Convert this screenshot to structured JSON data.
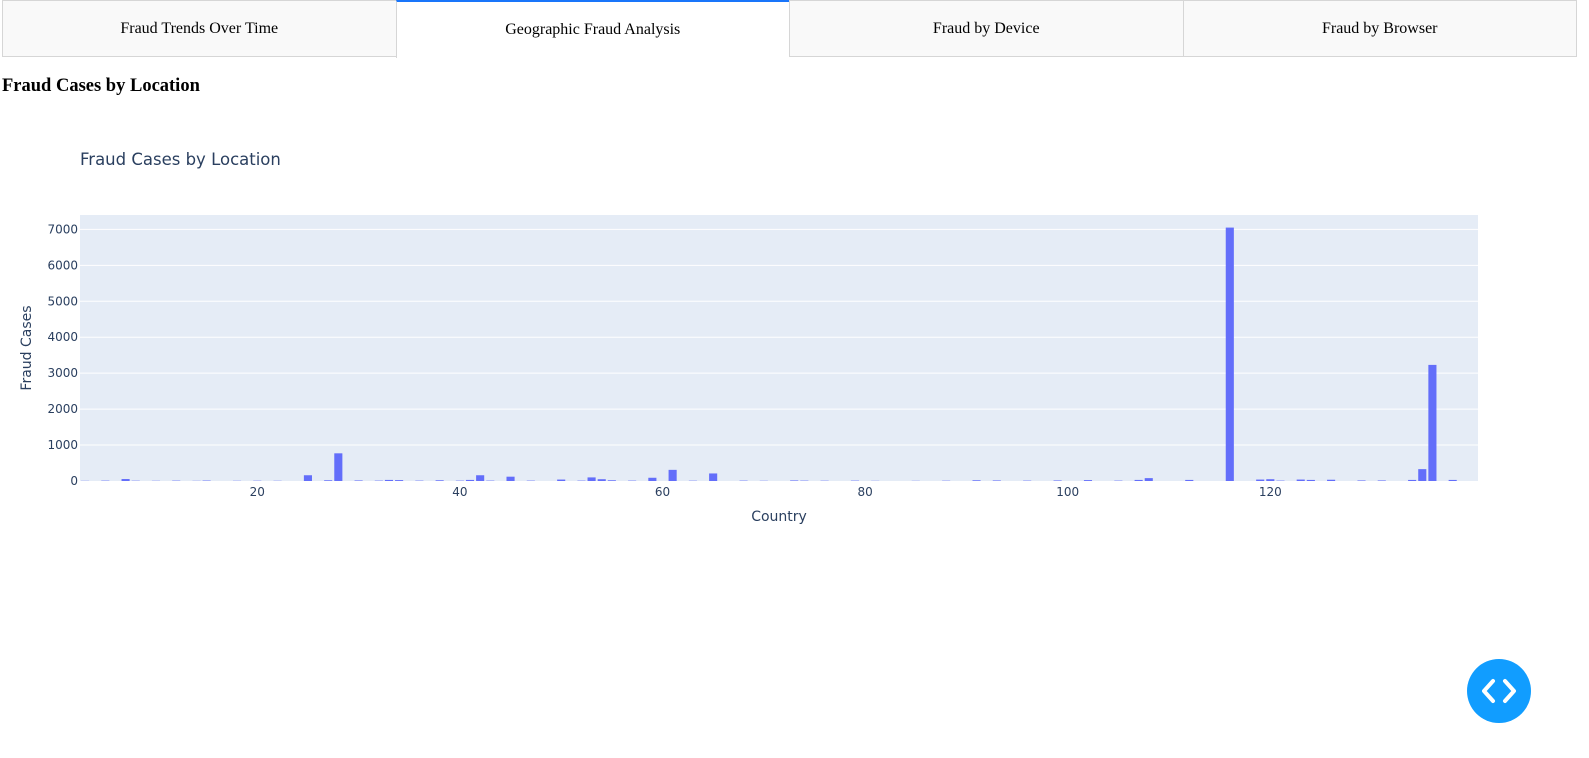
{
  "tabs": [
    {
      "label": "Fraud Trends Over Time",
      "active": false
    },
    {
      "label": "Geographic Fraud Analysis",
      "active": true
    },
    {
      "label": "Fraud by Device",
      "active": false
    },
    {
      "label": "Fraud by Browser",
      "active": false
    }
  ],
  "page": {
    "heading": "Fraud Cases by Location"
  },
  "colors": {
    "bar": "#636efa",
    "plot_bg": "#e5ecf6",
    "accent": "#1975fa",
    "fab": "#119dff",
    "axis_text": "#2a3f5f"
  },
  "fab": {
    "icon": "code-brackets-icon"
  },
  "chart_data": {
    "type": "bar",
    "title": "Fraud Cases by Location",
    "xlabel": "Country",
    "ylabel": "Fraud Cases",
    "xlim": [
      2.5,
      140.5
    ],
    "ylim": [
      0,
      7400
    ],
    "xticks": [
      20,
      40,
      60,
      80,
      100,
      120
    ],
    "yticks": [
      0,
      1000,
      2000,
      3000,
      4000,
      5000,
      6000,
      7000
    ],
    "grid": true,
    "x": [
      3,
      5,
      7,
      8,
      10,
      12,
      14,
      15,
      18,
      20,
      22,
      25,
      27,
      28,
      30,
      32,
      33,
      34,
      36,
      38,
      40,
      41,
      42,
      43,
      45,
      47,
      50,
      52,
      53,
      54,
      55,
      57,
      59,
      61,
      63,
      65,
      68,
      70,
      73,
      74,
      76,
      79,
      81,
      85,
      88,
      91,
      93,
      96,
      99,
      102,
      105,
      107,
      108,
      112,
      116,
      119,
      120,
      121,
      123,
      124,
      126,
      129,
      131,
      134,
      135,
      136,
      138
    ],
    "values": [
      5,
      10,
      55,
      8,
      6,
      10,
      5,
      12,
      6,
      8,
      6,
      160,
      20,
      770,
      15,
      10,
      30,
      25,
      10,
      20,
      10,
      30,
      160,
      10,
      120,
      10,
      40,
      10,
      100,
      50,
      20,
      10,
      90,
      310,
      8,
      210,
      10,
      6,
      15,
      10,
      8,
      10,
      5,
      5,
      8,
      20,
      15,
      10,
      15,
      25,
      10,
      30,
      80,
      30,
      7050,
      40,
      50,
      10,
      40,
      30,
      35,
      15,
      15,
      30,
      330,
      3230,
      30
    ]
  }
}
